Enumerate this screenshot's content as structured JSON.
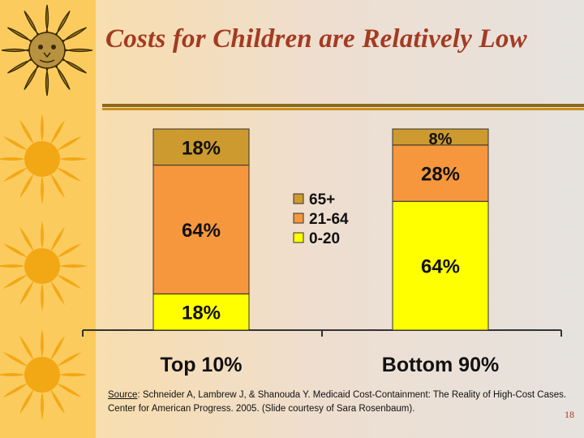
{
  "slide": {
    "title": "Costs for Children are Relatively Low",
    "source_label": "Source",
    "source_text": ": Schneider A, Lambrew J, & Shanouda Y.  Medicaid Cost-Containment: The Reality of High-Cost Cases. Center for American Progress. 2005. (Slide courtesy of Sara Rosenbaum).",
    "page_number": "18"
  },
  "colors": {
    "title": "#a33b22",
    "series_65plus": "#cc9a2e",
    "series_21_64": "#f7973d",
    "series_0_20": "#ffff00",
    "sun": "#f2a714"
  },
  "icons": [
    "sun-face-icon",
    "sun-icon",
    "sun-icon",
    "sun-icon"
  ],
  "chart_data": {
    "type": "bar",
    "stacked": true,
    "unit": "%",
    "categories": [
      "Top 10%",
      "Bottom 90%"
    ],
    "series": [
      {
        "name": "0-20",
        "color": "#ffff00",
        "values": [
          18,
          64
        ],
        "labels": [
          "18%",
          "64%"
        ]
      },
      {
        "name": "21-64",
        "color": "#f7973d",
        "values": [
          64,
          28
        ],
        "labels": [
          "64%",
          "28%"
        ]
      },
      {
        "name": "65+",
        "color": "#cc9a2e",
        "values": [
          18,
          8
        ],
        "labels": [
          "18%",
          "8%"
        ]
      }
    ],
    "legend_order": [
      "65+",
      "21-64",
      "0-20"
    ],
    "legend_position": "center, between bars",
    "ylim": [
      0,
      100
    ],
    "grid": false
  }
}
